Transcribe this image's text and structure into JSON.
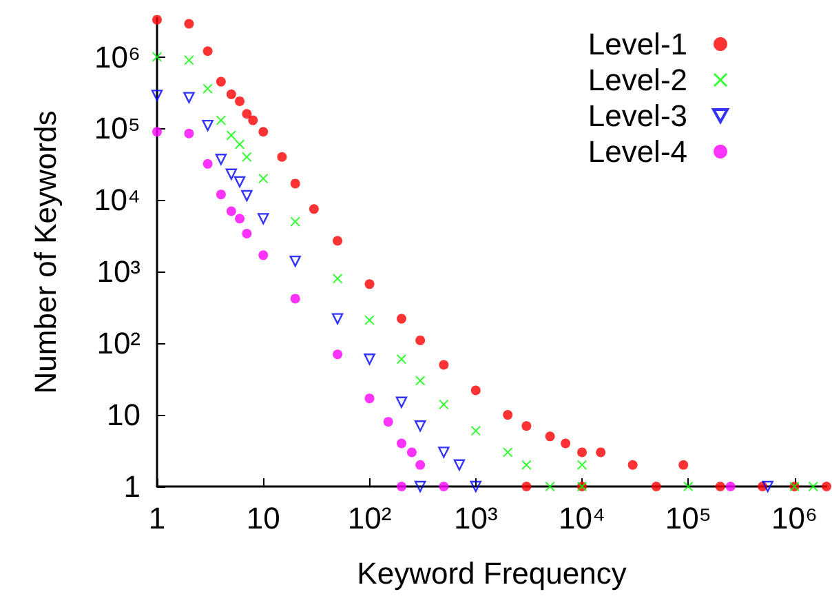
{
  "chart_data": {
    "type": "scatter",
    "xlabel": "Keyword Frequency",
    "ylabel": "Number of Keywords",
    "log": "xy",
    "grid": false,
    "legend": "top right",
    "xlim": [
      1,
      2000000
    ],
    "ylim": [
      1,
      3500000
    ],
    "xticks": [
      1,
      10,
      {
        "value": 100,
        "label": "10²"
      },
      {
        "value": 1000,
        "label": "10³"
      },
      {
        "value": 10000,
        "label": "10⁴"
      },
      {
        "value": 100000,
        "label": "10⁵"
      },
      {
        "value": 1000000,
        "label": "10⁶"
      }
    ],
    "yticks": [
      1,
      10,
      {
        "value": 100,
        "label": "10²"
      },
      {
        "value": 1000,
        "label": "10³"
      },
      {
        "value": 10000,
        "label": "10⁴"
      },
      {
        "value": 100000,
        "label": "10⁵"
      },
      {
        "value": 1000000,
        "label": "10⁶"
      }
    ],
    "series": [
      {
        "name": "Level-1",
        "color": "#ff0000",
        "marker": "circle",
        "x": [
          1,
          2,
          3,
          4,
          5,
          6,
          7,
          8,
          10,
          15,
          20,
          30,
          50,
          100,
          200,
          300,
          500,
          1000,
          2000,
          3000,
          5000,
          7000,
          10000,
          15000,
          30000,
          90000,
          3000,
          10000,
          50000,
          200000,
          500000,
          1000000,
          2000000
        ],
        "values": [
          3300000,
          2900000,
          1200000,
          450000,
          300000,
          240000,
          160000,
          130000,
          90000,
          40000,
          17000,
          7500,
          2700,
          670,
          220,
          110,
          50,
          22,
          10,
          7,
          5,
          4,
          3,
          3,
          2,
          2,
          1,
          1,
          1,
          1,
          1,
          1,
          1
        ]
      },
      {
        "name": "Level-2",
        "color": "#00ff00",
        "marker": "cross",
        "x": [
          1,
          2,
          3,
          4,
          5,
          6,
          7,
          10,
          20,
          50,
          100,
          200,
          300,
          500,
          1000,
          2000,
          3000,
          10000,
          5000,
          10000,
          100000,
          1000000,
          1500000
        ],
        "values": [
          1000000,
          900000,
          360000,
          130000,
          80000,
          60000,
          40000,
          20000,
          5000,
          800,
          210,
          60,
          30,
          14,
          6,
          3,
          2,
          2,
          1,
          1,
          1,
          1,
          1
        ]
      },
      {
        "name": "Level-3",
        "color": "#0000ff",
        "marker": "triangle",
        "x": [
          1,
          2,
          3,
          4,
          5,
          6,
          7,
          10,
          20,
          50,
          100,
          200,
          300,
          500,
          700,
          300,
          1000,
          560000
        ],
        "values": [
          290000,
          270000,
          110000,
          37000,
          23000,
          18000,
          11500,
          5500,
          1400,
          220,
          60,
          15,
          7,
          3,
          2,
          1,
          1,
          1
        ]
      },
      {
        "name": "Level-4",
        "color": "#ff00ff",
        "marker": "circle",
        "x": [
          1,
          2,
          3,
          4,
          5,
          6,
          7,
          10,
          20,
          50,
          100,
          150,
          200,
          250,
          300,
          200,
          500,
          250000
        ],
        "values": [
          90000,
          85000,
          32000,
          12000,
          7000,
          5500,
          3400,
          1700,
          420,
          70,
          17,
          8,
          4,
          3,
          2,
          1,
          1,
          1
        ]
      }
    ]
  }
}
